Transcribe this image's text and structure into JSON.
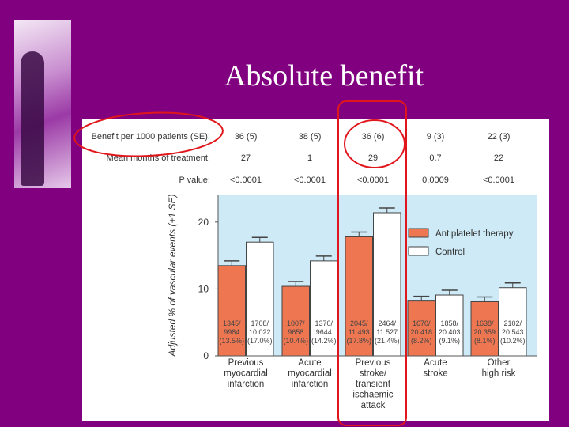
{
  "slide": {
    "title": "Absolute benefit"
  },
  "table": {
    "rows": [
      {
        "label": "Benefit per 1000 patients (SE):",
        "values": [
          "36 (5)",
          "38 (5)",
          "36 (6)",
          "9 (3)",
          "22 (3)"
        ]
      },
      {
        "label": "Mean months of treatment:",
        "values": [
          "27",
          "1",
          "29",
          "0.7",
          "22"
        ]
      },
      {
        "label": "P value:",
        "values": [
          "<0.0001",
          "<0.0001",
          "<0.0001",
          "0.0009",
          "<0.0001"
        ]
      }
    ]
  },
  "chart_data": {
    "type": "bar",
    "ylabel": "Adjusted % of vascular events (+1 SE)",
    "ylim": [
      0,
      24
    ],
    "yticks": [
      "0",
      "10",
      "20"
    ],
    "categories": [
      [
        "Previous",
        "myocardial",
        "infarction"
      ],
      [
        "Acute",
        "myocardial",
        "infarction"
      ],
      [
        "Previous",
        "stroke/",
        "transient",
        "ischaemic",
        "attack"
      ],
      [
        "Acute",
        "stroke"
      ],
      [
        "Other",
        "high risk"
      ]
    ],
    "series": [
      {
        "name": "Antiplatelet therapy",
        "color": "#ee7752",
        "values": [
          13.5,
          10.4,
          17.8,
          8.2,
          8.1
        ],
        "labels": [
          [
            "1345/",
            "9984",
            "(13.5%)"
          ],
          [
            "1007/",
            "9658",
            "(10.4%)"
          ],
          [
            "2045/",
            "11 493",
            "(17.8%)"
          ],
          [
            "1670/",
            "20 418",
            "(8.2%)"
          ],
          [
            "1638/",
            "20 359",
            "(8.1%)"
          ]
        ]
      },
      {
        "name": "Control",
        "color": "#ffffff",
        "values": [
          17.0,
          14.2,
          21.4,
          9.1,
          10.2
        ],
        "labels": [
          [
            "1708/",
            "10 022",
            "(17.0%)"
          ],
          [
            "1370/",
            "9644",
            "(14.2%)"
          ],
          [
            "2464/",
            "11 527",
            "(21.4%)"
          ],
          [
            "1858/",
            "20 403",
            "(9.1%)"
          ],
          [
            "2102/",
            "20 543",
            "(10.2%)"
          ]
        ]
      }
    ],
    "plot_bg": "#cdeaf6",
    "legend": "top-right",
    "annotation_color": "#e0161c"
  }
}
